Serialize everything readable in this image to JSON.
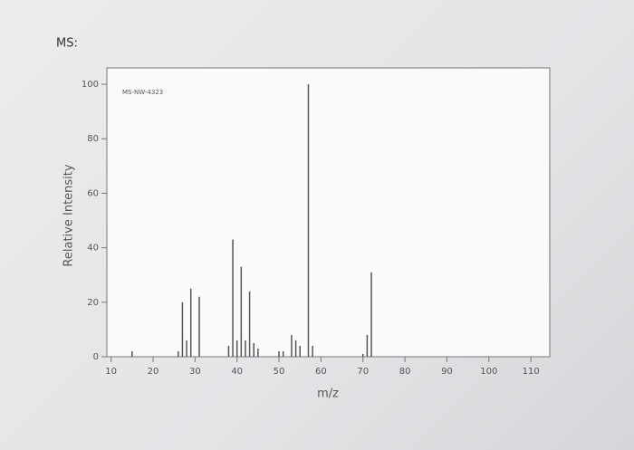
{
  "heading": "MS:",
  "chart_data": {
    "type": "bar",
    "annotation": "MS-NW-4323",
    "x_label": "m/z",
    "y_label": "Relative Intensity",
    "x": [
      15,
      26,
      27,
      28,
      29,
      31,
      38,
      39,
      40,
      41,
      42,
      43,
      44,
      45,
      50,
      51,
      53,
      54,
      55,
      57,
      58,
      70,
      71,
      72
    ],
    "values": [
      2,
      2,
      20,
      6,
      25,
      22,
      4,
      43,
      6,
      33,
      6,
      24,
      5,
      3,
      2,
      2,
      8,
      6,
      4,
      100,
      4,
      1,
      8,
      31
    ],
    "color": "#555555",
    "xlim": [
      9,
      114.5
    ],
    "ylim": [
      0,
      106
    ],
    "xticks": [
      10,
      20,
      30,
      40,
      50,
      60,
      70,
      80,
      90,
      100,
      110
    ],
    "yticks": [
      0,
      20,
      40,
      60,
      80,
      100
    ]
  }
}
